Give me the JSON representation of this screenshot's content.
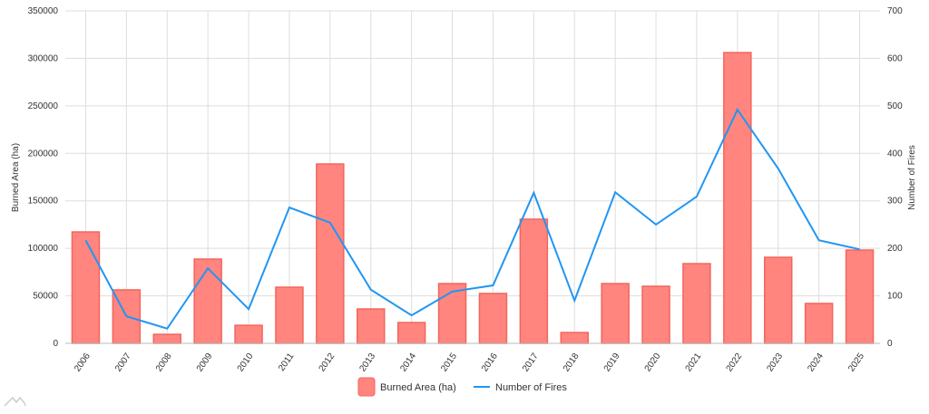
{
  "chart_data": {
    "type": "bar",
    "categories": [
      "2006",
      "2007",
      "2008",
      "2009",
      "2010",
      "2011",
      "2012",
      "2013",
      "2014",
      "2015",
      "2016",
      "2017",
      "2018",
      "2019",
      "2020",
      "2021",
      "2022",
      "2023",
      "2024",
      "2025"
    ],
    "series": [
      {
        "name": "Burned Area (ha)",
        "type": "bar",
        "axis": "left",
        "color": "#ff857e",
        "values": [
          117300,
          56300,
          9500,
          88700,
          19000,
          59100,
          188800,
          36200,
          21900,
          62900,
          52500,
          130700,
          11400,
          62900,
          60100,
          83900,
          306100,
          90600,
          42000,
          98200
        ]
      },
      {
        "name": "Number of Fires",
        "type": "line",
        "axis": "right",
        "color": "#2196f3",
        "values": [
          217,
          57,
          31,
          158,
          72,
          286,
          254,
          113,
          59,
          109,
          122,
          317,
          90,
          318,
          250,
          309,
          492,
          368,
          217,
          198
        ]
      }
    ],
    "ylabel": "Burned Area (ha)",
    "y2label": "Number of Fires",
    "ylim": [
      0,
      350000
    ],
    "y2lim": [
      0,
      700
    ],
    "yticks": [
      "0",
      "50000",
      "100000",
      "150000",
      "200000",
      "250000",
      "300000",
      "350000"
    ],
    "y2ticks": [
      "0",
      "100",
      "200",
      "300",
      "400",
      "500",
      "600",
      "700"
    ],
    "grid": true,
    "legend": "bottom-center"
  }
}
